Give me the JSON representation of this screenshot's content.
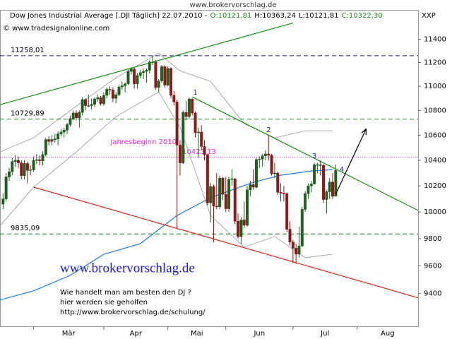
{
  "chart_data": {
    "type": "candlestick",
    "watermark": "www.brokervorschlag.de",
    "title": "Dow Jones Industrial Average [.DJI  Täglich] 22.07.2010 -",
    "quotes": [
      {
        "text": "O:10121,81",
        "color": "#1a8a1a"
      },
      {
        "text": "H:10363,24",
        "color": "#000000"
      },
      {
        "text": "L:10121,81",
        "color": "#000000"
      },
      {
        "text": "C:10322,30",
        "color": "#1a8a1a"
      }
    ],
    "copyright": "© www.tradesignalonline.com",
    "corner_label": "XXP",
    "up_color": "#1f5f1f",
    "down_color": "#8b1a1a",
    "log_scale": true,
    "ylim": [
      9170,
      11650
    ],
    "yticks": [
      9400,
      9600,
      9800,
      10000,
      10200,
      10400,
      10600,
      10800,
      11000,
      11200,
      11400
    ],
    "xlim": [
      -1,
      136
    ],
    "xticks": [
      10,
      33,
      54,
      73,
      95,
      116
    ],
    "months": [
      "Mär",
      "Apr",
      "Mai",
      "Jun",
      "Jul",
      "Aug"
    ],
    "ohlc": [
      [
        10060,
        10140,
        10020,
        10100
      ],
      [
        10100,
        10300,
        10080,
        10270
      ],
      [
        10270,
        10340,
        10240,
        10310
      ],
      [
        10310,
        10420,
        10280,
        10390
      ],
      [
        10390,
        10440,
        10350,
        10400
      ],
      [
        10400,
        10430,
        10340,
        10380
      ],
      [
        10380,
        10400,
        10250,
        10280
      ],
      [
        10280,
        10400,
        10250,
        10375
      ],
      [
        10375,
        10390,
        10220,
        10320
      ],
      [
        10320,
        10360,
        10280,
        10325
      ],
      [
        10325,
        10430,
        10310,
        10400
      ],
      [
        10400,
        10450,
        10370,
        10405
      ],
      [
        10405,
        10440,
        10360,
        10395
      ],
      [
        10395,
        10470,
        10360,
        10445
      ],
      [
        10445,
        10580,
        10430,
        10565
      ],
      [
        10565,
        10590,
        10520,
        10550
      ],
      [
        10550,
        10600,
        10520,
        10565
      ],
      [
        10565,
        10610,
        10540,
        10570
      ],
      [
        10570,
        10630,
        10520,
        10610
      ],
      [
        10610,
        10650,
        10590,
        10625
      ],
      [
        10625,
        10660,
        10580,
        10640
      ],
      [
        10640,
        10700,
        10610,
        10685
      ],
      [
        10685,
        10760,
        10670,
        10735
      ],
      [
        10735,
        10800,
        10720,
        10780
      ],
      [
        10780,
        10800,
        10720,
        10740
      ],
      [
        10740,
        10800,
        10660,
        10785
      ],
      [
        10785,
        10910,
        10760,
        10890
      ],
      [
        10890,
        10900,
        10800,
        10840
      ],
      [
        10840,
        10930,
        10830,
        10840
      ],
      [
        10840,
        10900,
        10810,
        10850
      ],
      [
        10850,
        10910,
        10830,
        10895
      ],
      [
        10895,
        10930,
        10870,
        10905
      ],
      [
        10905,
        10920,
        10840,
        10855
      ],
      [
        10855,
        10950,
        10840,
        10925
      ],
      [
        10925,
        10990,
        10900,
        10975
      ],
      [
        10975,
        11000,
        10930,
        10970
      ],
      [
        10970,
        10990,
        10870,
        10900
      ],
      [
        10900,
        10950,
        10860,
        10930
      ],
      [
        10930,
        11010,
        10920,
        10995
      ],
      [
        10995,
        11040,
        10970,
        11005
      ],
      [
        11005,
        11030,
        10950,
        11020
      ],
      [
        11020,
        11140,
        11010,
        11125
      ],
      [
        11125,
        11160,
        11100,
        11145
      ],
      [
        11145,
        11160,
        10980,
        11020
      ],
      [
        11020,
        11110,
        10980,
        11090
      ],
      [
        11090,
        11140,
        11070,
        11115
      ],
      [
        11115,
        11150,
        11060,
        11125
      ],
      [
        11125,
        11150,
        11030,
        11135
      ],
      [
        11135,
        11220,
        11110,
        11205
      ],
      [
        11205,
        11260,
        11180,
        11205
      ],
      [
        11205,
        11220,
        10970,
        10990
      ],
      [
        10990,
        11060,
        10950,
        11045
      ],
      [
        11045,
        11180,
        11030,
        11165
      ],
      [
        11165,
        11180,
        10990,
        11010
      ],
      [
        11010,
        11170,
        11000,
        11150
      ],
      [
        11150,
        11160,
        10900,
        10925
      ],
      [
        10925,
        10960,
        10840,
        10870
      ],
      [
        10870,
        10890,
        9870,
        10520
      ],
      [
        10520,
        10560,
        10280,
        10380
      ],
      [
        10380,
        10800,
        10370,
        10785
      ],
      [
        10785,
        10880,
        10720,
        10750
      ],
      [
        10750,
        10910,
        10730,
        10895
      ],
      [
        10895,
        10900,
        10760,
        10780
      ],
      [
        10780,
        10790,
        10580,
        10620
      ],
      [
        10620,
        10660,
        10420,
        10625
      ],
      [
        10625,
        10680,
        10480,
        10510
      ],
      [
        10510,
        10560,
        10400,
        10445
      ],
      [
        10445,
        10450,
        10050,
        10070
      ],
      [
        10070,
        10220,
        9920,
        10195
      ],
      [
        10195,
        10210,
        9775,
        10045
      ],
      [
        10045,
        10300,
        10020,
        10040
      ],
      [
        10040,
        10280,
        10020,
        10260
      ],
      [
        10260,
        10270,
        10090,
        10135
      ],
      [
        10135,
        10270,
        10000,
        10025
      ],
      [
        10025,
        10270,
        10000,
        10250
      ],
      [
        10250,
        10330,
        10200,
        10255
      ],
      [
        10255,
        10260,
        9910,
        9930
      ],
      [
        9930,
        9990,
        9800,
        9815
      ],
      [
        9815,
        9960,
        9760,
        9940
      ],
      [
        9940,
        10080,
        9880,
        9900
      ],
      [
        9900,
        10200,
        9890,
        10170
      ],
      [
        10170,
        10240,
        10120,
        10210
      ],
      [
        10210,
        10330,
        10170,
        10190
      ],
      [
        10190,
        10420,
        10180,
        10405
      ],
      [
        10405,
        10430,
        10340,
        10410
      ],
      [
        10410,
        10450,
        10350,
        10435
      ],
      [
        10435,
        10480,
        10400,
        10450
      ],
      [
        10450,
        10595,
        10400,
        10440
      ],
      [
        10440,
        10450,
        10280,
        10295
      ],
      [
        10295,
        10380,
        10260,
        10300
      ],
      [
        10300,
        10310,
        10130,
        10150
      ],
      [
        10150,
        10220,
        10080,
        10145
      ],
      [
        10145,
        10200,
        10080,
        10140
      ],
      [
        10140,
        10150,
        9850,
        9870
      ],
      [
        9870,
        9930,
        9750,
        9775
      ],
      [
        9775,
        9790,
        9620,
        9730
      ],
      [
        9730,
        9760,
        9615,
        9685
      ],
      [
        9685,
        9890,
        9660,
        9745
      ],
      [
        9745,
        10040,
        9740,
        10020
      ],
      [
        10020,
        10160,
        10000,
        10140
      ],
      [
        10140,
        10220,
        10100,
        10200
      ],
      [
        10200,
        10240,
        10150,
        10215
      ],
      [
        10215,
        10380,
        10210,
        10365
      ],
      [
        10365,
        10380,
        10300,
        10365
      ],
      [
        10365,
        10400,
        10280,
        10360
      ],
      [
        10360,
        10370,
        10070,
        10095
      ],
      [
        10095,
        10170,
        9990,
        10155
      ],
      [
        10155,
        10260,
        10100,
        10230
      ],
      [
        10230,
        10300,
        10100,
        10120
      ],
      [
        10120,
        10365,
        10120,
        10320
      ]
    ],
    "moving_average": {
      "color": "#1f78d0",
      "x": [
        -1,
        10,
        22,
        33,
        45,
        57,
        68,
        82,
        91,
        101,
        108
      ],
      "values": [
        9355,
        9420,
        9531,
        9685,
        9763,
        9974,
        10109,
        10228,
        10283,
        10316,
        10327
      ]
    },
    "bands": {
      "color": "#aaaaaa",
      "x": [
        -1,
        10,
        24,
        37,
        51,
        58,
        68,
        79,
        89,
        99,
        108
      ],
      "upper": [
        10466,
        10579,
        10836,
        11071,
        11280,
        11130,
        11041,
        10693,
        10579,
        10635,
        10635
      ],
      "lower": [
        9895,
        10190,
        10466,
        10750,
        10953,
        10664,
        9974,
        9738,
        9816,
        9660,
        9685
      ]
    },
    "trendlines": [
      {
        "color": "#1a8a1a",
        "x": [
          -1,
          95
        ],
        "values": [
          10848,
          11541
        ]
      },
      {
        "color": "#1a8a1a",
        "x": [
          62,
          136
        ],
        "values": [
          10912,
          10012
        ]
      },
      {
        "color": "#e02020",
        "x": [
          10,
          136
        ],
        "values": [
          10190,
          9370
        ]
      }
    ],
    "levels": [
      {
        "value": 11258.01,
        "label": "11258,01",
        "color": "#1a1a7a",
        "style": "dashed"
      },
      {
        "value": 10729.89,
        "label": "10729,89",
        "color": "#1a7a1a",
        "style": "dashed"
      },
      {
        "value": 10423.13,
        "label": "10423,13",
        "color": "#e030e0",
        "style": "dotted",
        "note": "Jahresbeginn 2010"
      },
      {
        "value": 9835.09,
        "label": "9835,09",
        "color": "#1a7a1a",
        "style": "dashed"
      }
    ],
    "annotations": [
      {
        "text": "1",
        "x": 63,
        "y": 10947
      },
      {
        "text": "2",
        "x": 87,
        "y": 10641
      },
      {
        "text": "3",
        "x": 102,
        "y": 10432
      },
      {
        "text": "4",
        "x": 111,
        "y": 10327
      }
    ],
    "arrow": {
      "x": [
        109,
        119
      ],
      "values": [
        10136,
        10652
      ]
    },
    "promo": {
      "url": "www.brokervorschlag.de",
      "lines": [
        "Wie handelt man am besten  den DJ ?",
        "hier werden sie geholfen",
        "http://www.brokervorschlag.de/schulung/"
      ]
    }
  }
}
